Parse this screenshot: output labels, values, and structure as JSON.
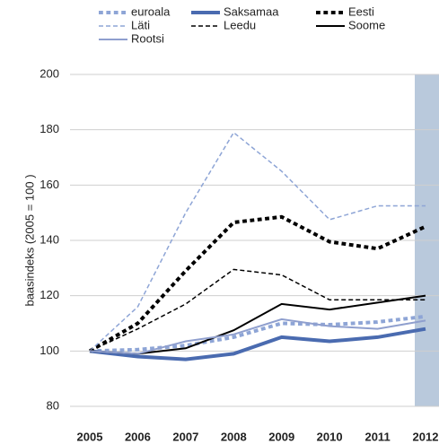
{
  "chart_data": {
    "type": "line",
    "y_label": "baasindeks  (2005 = 100 )",
    "categories": [
      "2005",
      "2006",
      "2007",
      "2008",
      "2009",
      "2010",
      "2011",
      "2012"
    ],
    "ylim": [
      80,
      200
    ],
    "yticks": [
      80,
      100,
      120,
      140,
      160,
      180,
      200
    ],
    "grid": true,
    "series": [
      {
        "name": "euroala",
        "color": "#8ea5d6",
        "line_style": "dotted",
        "linewidth": 4,
        "values": [
          100,
          100.5,
          102,
          105,
          110,
          109.5,
          110.5,
          112.5
        ]
      },
      {
        "name": "Saksamaa",
        "color": "#4a6bb0",
        "line_style": "solid",
        "linewidth": 4,
        "values": [
          100,
          98,
          97,
          99,
          105,
          103.5,
          105,
          108
        ]
      },
      {
        "name": "Eesti",
        "color": "#000000",
        "line_style": "dotted",
        "linewidth": 4,
        "values": [
          100,
          110,
          129,
          146.5,
          148.5,
          139.5,
          137,
          145
        ]
      },
      {
        "name": "Läti",
        "color": "#8ea5d6",
        "line_style": "dashed",
        "linewidth": 1.5,
        "values": [
          100,
          116,
          150,
          179,
          165,
          147.5,
          152.5,
          152.5
        ]
      },
      {
        "name": "Leedu",
        "color": "#000000",
        "line_style": "dashed",
        "linewidth": 1.5,
        "values": [
          100,
          108,
          117,
          129.5,
          127.5,
          118.5,
          118.5,
          118.5
        ]
      },
      {
        "name": "Soome",
        "color": "#000000",
        "line_style": "solid",
        "linewidth": 2,
        "values": [
          100,
          99,
          101,
          107.5,
          117,
          115,
          117.5,
          120
        ]
      },
      {
        "name": "Rootsi",
        "color": "#8f9fce",
        "line_style": "solid",
        "linewidth": 2,
        "values": [
          100,
          99,
          103.5,
          106,
          111.5,
          109,
          108,
          111
        ]
      }
    ]
  }
}
